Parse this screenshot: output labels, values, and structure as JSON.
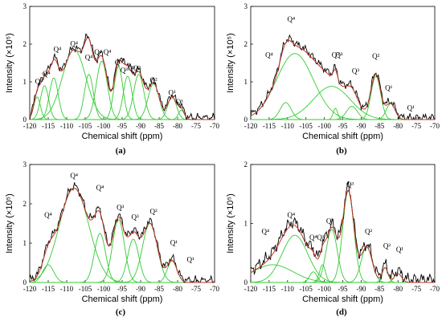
{
  "chart_data": [
    {
      "type": "line",
      "panel_label": "(a)",
      "xlabel": "Chemical shift (ppm)",
      "ylabel": "Intensity (×10⁵)",
      "xlim": [
        -120,
        -70
      ],
      "ylim": [
        0,
        3
      ],
      "xticks": [
        -120,
        -115,
        -110,
        -105,
        -100,
        -95,
        -90,
        -85,
        -80,
        -75,
        -70
      ],
      "yticks": [
        0,
        1,
        2,
        3
      ],
      "peaks": [
        {
          "label": "Q⁴",
          "x": -117.5,
          "y": 0.95
        },
        {
          "label": "Q⁴",
          "x": -115.5,
          "y": 1.15
        },
        {
          "label": "Q⁴",
          "x": -112.5,
          "y": 1.8
        },
        {
          "label": "Q⁴",
          "x": -108,
          "y": 1.95
        },
        {
          "label": "Q⁴",
          "x": -104,
          "y": 1.58
        },
        {
          "label": "Q⁴",
          "x": -101.5,
          "y": 1.72
        },
        {
          "label": "Q⁴",
          "x": -99,
          "y": 1.72
        },
        {
          "label": "Q³",
          "x": -96,
          "y": 1.45
        },
        {
          "label": "Q³",
          "x": -94.5,
          "y": 1.25
        },
        {
          "label": "Q³",
          "x": -92.5,
          "y": 1.3
        },
        {
          "label": "Q³",
          "x": -91,
          "y": 1.3
        },
        {
          "label": "Q²",
          "x": -86.5,
          "y": 0.98
        },
        {
          "label": "Q¹",
          "x": -81.5,
          "y": 0.65
        },
        {
          "label": "Q¹",
          "x": -79.5,
          "y": 0.4
        }
      ],
      "components": [
        {
          "c": -118,
          "a": 0.6,
          "w": 0.9
        },
        {
          "c": -116,
          "a": 0.9,
          "w": 1.1
        },
        {
          "c": -113.5,
          "a": 1.1,
          "w": 1.2
        },
        {
          "c": -108,
          "a": 1.85,
          "w": 3.2
        },
        {
          "c": -104,
          "a": 1.2,
          "w": 1.2
        },
        {
          "c": -100.5,
          "a": 1.55,
          "w": 1.5
        },
        {
          "c": -96,
          "a": 1.4,
          "w": 1.2
        },
        {
          "c": -93.5,
          "a": 1.15,
          "w": 1.2
        },
        {
          "c": -90.5,
          "a": 1.2,
          "w": 1.4
        },
        {
          "c": -86.5,
          "a": 0.95,
          "w": 1.5
        },
        {
          "c": -81.5,
          "a": 0.6,
          "w": 1.2
        },
        {
          "c": -79,
          "a": 0.25,
          "w": 0.8
        }
      ]
    },
    {
      "type": "line",
      "panel_label": "(b)",
      "xlabel": "Chemical shift (ppm)",
      "ylabel": "Intensity (×10⁵)",
      "xlim": [
        -120,
        -70
      ],
      "ylim": [
        0,
        3
      ],
      "xticks": [
        -120,
        -115,
        -110,
        -105,
        -100,
        -95,
        -90,
        -85,
        -80,
        -75,
        -70
      ],
      "yticks": [
        0,
        1,
        2,
        3
      ],
      "peaks": [
        {
          "label": "Q⁴",
          "x": -115,
          "y": 1.65
        },
        {
          "label": "Q⁴",
          "x": -109,
          "y": 2.6
        },
        {
          "label": "Q³",
          "x": -97,
          "y": 1.65
        },
        {
          "label": "Q³",
          "x": -96,
          "y": 1.65
        },
        {
          "label": "Q³",
          "x": -91.5,
          "y": 1.22
        },
        {
          "label": "Q²",
          "x": -86,
          "y": 1.62
        },
        {
          "label": "Q¹",
          "x": -82.5,
          "y": 0.78
        },
        {
          "label": "Q¹",
          "x": -76.5,
          "y": 0.25
        }
      ],
      "components": [
        {
          "c": -110.5,
          "a": 0.45,
          "w": 1.5
        },
        {
          "c": -108,
          "a": 1.75,
          "w": 5.0
        },
        {
          "c": -98,
          "a": 0.88,
          "w": 5.0
        },
        {
          "c": -97,
          "a": 0.3,
          "w": 0.6
        },
        {
          "c": -92.5,
          "a": 0.35,
          "w": 1.5
        },
        {
          "c": -86,
          "a": 1.15,
          "w": 1.3
        },
        {
          "c": -82,
          "a": 0.42,
          "w": 1.2
        }
      ]
    },
    {
      "type": "line",
      "panel_label": "(c)",
      "xlabel": "Chemical shift (ppm)",
      "ylabel": "Intensity (×10⁵)",
      "xlim": [
        -120,
        -70
      ],
      "ylim": [
        0,
        3
      ],
      "xticks": [
        -120,
        -115,
        -110,
        -105,
        -100,
        -95,
        -90,
        -85,
        -80,
        -75,
        -70
      ],
      "yticks": [
        0,
        1,
        2,
        3
      ],
      "peaks": [
        {
          "label": "Q⁴",
          "x": -115,
          "y": 1.65
        },
        {
          "label": "Q⁴",
          "x": -108,
          "y": 2.65
        },
        {
          "label": "Q⁴",
          "x": -101,
          "y": 2.35
        },
        {
          "label": "Q³",
          "x": -95.5,
          "y": 1.85
        },
        {
          "label": "Q³",
          "x": -91.5,
          "y": 1.6
        },
        {
          "label": "Q²",
          "x": -86.5,
          "y": 1.75
        },
        {
          "label": "Q¹",
          "x": -81,
          "y": 0.95
        },
        {
          "label": "Q¹",
          "x": -76.5,
          "y": 0.52
        }
      ],
      "components": [
        {
          "c": -115,
          "a": 0.45,
          "w": 1.5
        },
        {
          "c": -108,
          "a": 2.4,
          "w": 4.0
        },
        {
          "c": -101,
          "a": 1.25,
          "w": 1.5
        },
        {
          "c": -96,
          "a": 1.6,
          "w": 1.6
        },
        {
          "c": -92,
          "a": 1.1,
          "w": 1.5
        },
        {
          "c": -87.5,
          "a": 1.5,
          "w": 2.0
        },
        {
          "c": -81.5,
          "a": 0.55,
          "w": 1.3
        }
      ]
    },
    {
      "type": "line",
      "panel_label": "(d)",
      "xlabel": "Chemical shift (ppm)",
      "ylabel": "Intensity (×10⁵)",
      "xlim": [
        -120,
        -70
      ],
      "ylim": [
        0,
        2
      ],
      "xticks": [
        -120,
        -115,
        -110,
        -105,
        -100,
        -95,
        -90,
        -85,
        -80,
        -75,
        -70
      ],
      "yticks": [
        0,
        1,
        2
      ],
      "peaks": [
        {
          "label": "Q⁴",
          "x": -116,
          "y": 0.82
        },
        {
          "label": "Q⁴",
          "x": -109,
          "y": 1.1
        },
        {
          "label": "Q⁴",
          "x": -103,
          "y": 0.72
        },
        {
          "label": "Q³",
          "x": -101,
          "y": 0.72
        },
        {
          "label": "Q³",
          "x": -98.5,
          "y": 1.0
        },
        {
          "label": "Q³",
          "x": -93,
          "y": 1.62
        },
        {
          "label": "Q²",
          "x": -88,
          "y": 0.82
        },
        {
          "label": "Q²",
          "x": -83,
          "y": 0.58
        },
        {
          "label": "Q¹",
          "x": -79.5,
          "y": 0.52
        }
      ],
      "components": [
        {
          "c": -108,
          "a": 0.8,
          "w": 3.5
        },
        {
          "c": -114,
          "a": 0.3,
          "w": 5.5
        },
        {
          "c": -103,
          "a": 0.18,
          "w": 1.0
        },
        {
          "c": -100.5,
          "a": 0.3,
          "w": 0.8
        },
        {
          "c": -98,
          "a": 0.9,
          "w": 1.5
        },
        {
          "c": -93.5,
          "a": 1.55,
          "w": 1.5
        },
        {
          "c": -88.5,
          "a": 0.6,
          "w": 1.5
        },
        {
          "c": -83.5,
          "a": 0.25,
          "w": 0.8
        },
        {
          "c": -80,
          "a": 0.15,
          "w": 1.0
        }
      ]
    }
  ],
  "colors": {
    "experimental": "#000000",
    "fit": "#c0392b",
    "component": "#33cc33",
    "axis": "#000000"
  }
}
